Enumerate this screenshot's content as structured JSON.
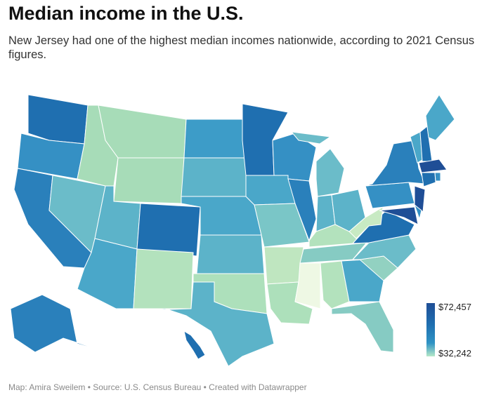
{
  "title": "Median income in the U.S.",
  "subtitle": "New Jersey had one of the highest median incomes nationwide, according to 2021 Census figures.",
  "legend": {
    "max_label": "$72,457",
    "min_label": "$32,242",
    "max_color": "#1f4e96",
    "min_color": "#d8f0d2"
  },
  "footer": "Map: Amira Sweilem • Source: U.S. Census Bureau • Created with Datawrapper",
  "states": [
    {
      "code": "WA",
      "name": "Washington",
      "color": "#1f6fb0"
    },
    {
      "code": "OR",
      "name": "Oregon",
      "color": "#3590c4"
    },
    {
      "code": "CA",
      "name": "California",
      "color": "#2a80bb"
    },
    {
      "code": "NV",
      "name": "Nevada",
      "color": "#6bbcc9"
    },
    {
      "code": "ID",
      "name": "Idaho",
      "color": "#a7dcb8"
    },
    {
      "code": "MT",
      "name": "Montana",
      "color": "#a7dcb8"
    },
    {
      "code": "WY",
      "name": "Wyoming",
      "color": "#a7dcb8"
    },
    {
      "code": "UT",
      "name": "Utah",
      "color": "#5cb3c9"
    },
    {
      "code": "AZ",
      "name": "Arizona",
      "color": "#4aa7c9"
    },
    {
      "code": "CO",
      "name": "Colorado",
      "color": "#1f6fb0"
    },
    {
      "code": "NM",
      "name": "New Mexico",
      "color": "#b3e2bd"
    },
    {
      "code": "ND",
      "name": "North Dakota",
      "color": "#3d9cc8"
    },
    {
      "code": "SD",
      "name": "South Dakota",
      "color": "#5cb3c9"
    },
    {
      "code": "NE",
      "name": "Nebraska",
      "color": "#4aa7c9"
    },
    {
      "code": "KS",
      "name": "Kansas",
      "color": "#5cb3c9"
    },
    {
      "code": "OK",
      "name": "Oklahoma",
      "color": "#ade0bb"
    },
    {
      "code": "TX",
      "name": "Texas",
      "color": "#5cb3c9"
    },
    {
      "code": "MN",
      "name": "Minnesota",
      "color": "#1f6fb0"
    },
    {
      "code": "IA",
      "name": "Iowa",
      "color": "#4aa7c9"
    },
    {
      "code": "MO",
      "name": "Missouri",
      "color": "#7ac6c7"
    },
    {
      "code": "AR",
      "name": "Arkansas",
      "color": "#bfe6c0"
    },
    {
      "code": "LA",
      "name": "Louisiana",
      "color": "#ade0bb"
    },
    {
      "code": "WI",
      "name": "Wisconsin",
      "color": "#3590c4"
    },
    {
      "code": "IL",
      "name": "Illinois",
      "color": "#2a80bb"
    },
    {
      "code": "MI",
      "name": "Michigan",
      "color": "#6bbcc9"
    },
    {
      "code": "IN",
      "name": "Indiana",
      "color": "#5cb3c9"
    },
    {
      "code": "OH",
      "name": "Ohio",
      "color": "#5cb3c9"
    },
    {
      "code": "KY",
      "name": "Kentucky",
      "color": "#b3e2bd"
    },
    {
      "code": "TN",
      "name": "Tennessee",
      "color": "#86cbc3"
    },
    {
      "code": "MS",
      "name": "Mississippi",
      "color": "#eef8e4"
    },
    {
      "code": "AL",
      "name": "Alabama",
      "color": "#b3e2bd"
    },
    {
      "code": "GA",
      "name": "Georgia",
      "color": "#4aa7c9"
    },
    {
      "code": "FL",
      "name": "Florida",
      "color": "#86cbc3"
    },
    {
      "code": "SC",
      "name": "South Carolina",
      "color": "#92d1c1"
    },
    {
      "code": "NC",
      "name": "North Carolina",
      "color": "#6bbcc9"
    },
    {
      "code": "VA",
      "name": "Virginia",
      "color": "#1f6fb0"
    },
    {
      "code": "WV",
      "name": "West Virginia",
      "color": "#c8eac3"
    },
    {
      "code": "PA",
      "name": "Pennsylvania",
      "color": "#3590c4"
    },
    {
      "code": "NY",
      "name": "New York",
      "color": "#2a80bb"
    },
    {
      "code": "NJ",
      "name": "New Jersey",
      "color": "#1f4e96"
    },
    {
      "code": "MD",
      "name": "Maryland",
      "color": "#1f4e96"
    },
    {
      "code": "DE",
      "name": "Delaware",
      "color": "#3590c4"
    },
    {
      "code": "VT",
      "name": "Vermont",
      "color": "#4aa7c9"
    },
    {
      "code": "NH",
      "name": "New Hampshire",
      "color": "#1f6fb0"
    },
    {
      "code": "ME",
      "name": "Maine",
      "color": "#4aa7c9"
    },
    {
      "code": "MA",
      "name": "Massachusetts",
      "color": "#1f4e96"
    },
    {
      "code": "CT",
      "name": "Connecticut",
      "color": "#1f6fb0"
    },
    {
      "code": "RI",
      "name": "Rhode Island",
      "color": "#3590c4"
    },
    {
      "code": "AK",
      "name": "Alaska",
      "color": "#2a80bb"
    },
    {
      "code": "HI",
      "name": "Hawaii",
      "color": "#1f6fb0"
    }
  ]
}
